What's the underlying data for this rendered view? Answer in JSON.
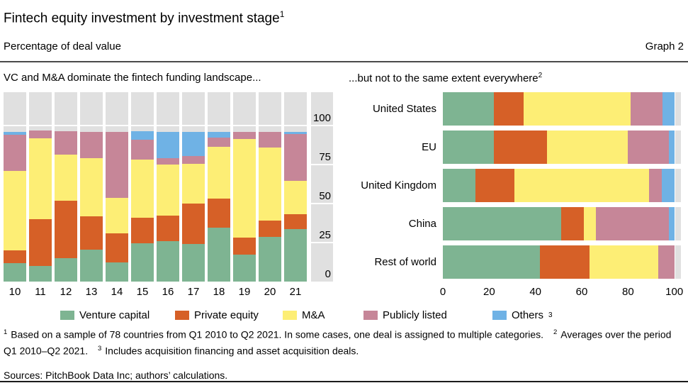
{
  "header": {
    "title": "Fintech equity investment by investment stage",
    "title_sup": "1",
    "subtitle": "Percentage of deal value",
    "graph_label": "Graph 2"
  },
  "panels": {
    "left": {
      "title": "VC and M&A dominate the fintech funding landscape..."
    },
    "right": {
      "title": "...but not to the same extent everywhere",
      "title_sup": "2"
    }
  },
  "colors": {
    "venture_capital": "#7eb492",
    "private_equity": "#d66027",
    "m_and_a": "#fdee75",
    "publicly_listed": "#c68698",
    "others": "#6fb2e5",
    "plot_background": "#e0e0e0",
    "gridline": "#ffffff"
  },
  "chart_data": [
    {
      "type": "bar",
      "stacked": true,
      "orientation": "vertical",
      "title": "VC and M&A dominate the fintech funding landscape...",
      "ylabel": "Percentage of deal value",
      "ylim": [
        0,
        100
      ],
      "yticks": [
        0,
        25,
        50,
        75,
        100
      ],
      "grid": true,
      "categories": [
        "10",
        "11",
        "12",
        "13",
        "14",
        "15",
        "16",
        "17",
        "18",
        "19",
        "20",
        "21"
      ],
      "series": [
        {
          "name": "Venture capital",
          "color": "#7eb492",
          "values": [
            12,
            10,
            15,
            20.5,
            12.5,
            24.5,
            26,
            24,
            34.5,
            17.5,
            28.5,
            33.5
          ]
        },
        {
          "name": "Private equity",
          "color": "#d66027",
          "values": [
            8,
            30,
            37,
            21.5,
            18.5,
            16.5,
            16.5,
            26,
            18.5,
            10.5,
            10.5,
            9.5
          ]
        },
        {
          "name": "M&A",
          "color": "#fdee75",
          "values": [
            51,
            52,
            29.5,
            37,
            22.5,
            37,
            32.5,
            25.5,
            33.5,
            63.5,
            47,
            21.5
          ]
        },
        {
          "name": "Publicly listed",
          "color": "#c68698",
          "values": [
            23,
            5,
            15,
            17,
            42.5,
            13,
            4,
            5,
            6,
            4.5,
            10,
            30
          ]
        },
        {
          "name": "Others",
          "color": "#6fb2e5",
          "values": [
            2,
            0,
            0,
            0,
            0,
            5.5,
            17,
            15.5,
            3.5,
            0,
            0,
            1.5
          ]
        }
      ]
    },
    {
      "type": "bar",
      "stacked": true,
      "orientation": "horizontal",
      "title": "...but not to the same extent everywhere",
      "xlim": [
        0,
        100
      ],
      "xticks": [
        0,
        20,
        40,
        60,
        80,
        100
      ],
      "grid": true,
      "categories": [
        "United States",
        "EU",
        "United Kingdom",
        "China",
        "Rest of world"
      ],
      "series": [
        {
          "name": "Venture capital",
          "color": "#7eb492",
          "values": [
            22,
            22,
            14,
            51,
            42
          ]
        },
        {
          "name": "Private equity",
          "color": "#d66027",
          "values": [
            13,
            23,
            17,
            10,
            21.5
          ]
        },
        {
          "name": "M&A",
          "color": "#fdee75",
          "values": [
            46,
            35,
            58,
            5,
            29.5
          ]
        },
        {
          "name": "Publicly listed",
          "color": "#c68698",
          "values": [
            14,
            17.5,
            5.5,
            31.5,
            7
          ]
        },
        {
          "name": "Others",
          "color": "#6fb2e5",
          "values": [
            5,
            2.5,
            5.5,
            2.5,
            0
          ]
        }
      ]
    }
  ],
  "legend": {
    "items": [
      {
        "label": "Venture capital",
        "color": "#7eb492"
      },
      {
        "label": "Private equity",
        "color": "#d66027"
      },
      {
        "label": "M&A",
        "color": "#fdee75"
      },
      {
        "label": "Publicly listed",
        "color": "#c68698"
      },
      {
        "label": "Others",
        "sup": "3",
        "color": "#6fb2e5"
      }
    ]
  },
  "footnotes": {
    "fn1_marker": "1",
    "fn1_text": "Based on a sample of 78 countries from Q1 2010 to Q2 2021. In some cases, one deal is assigned to multiple categories.",
    "fn2_marker": "2",
    "fn2_text": "Averages over the period Q1 2010–Q2 2021.",
    "fn3_marker": "3",
    "fn3_text": "Includes acquisition financing and asset acquisition deals."
  },
  "sources": "Sources: PitchBook Data Inc; authors’ calculations."
}
